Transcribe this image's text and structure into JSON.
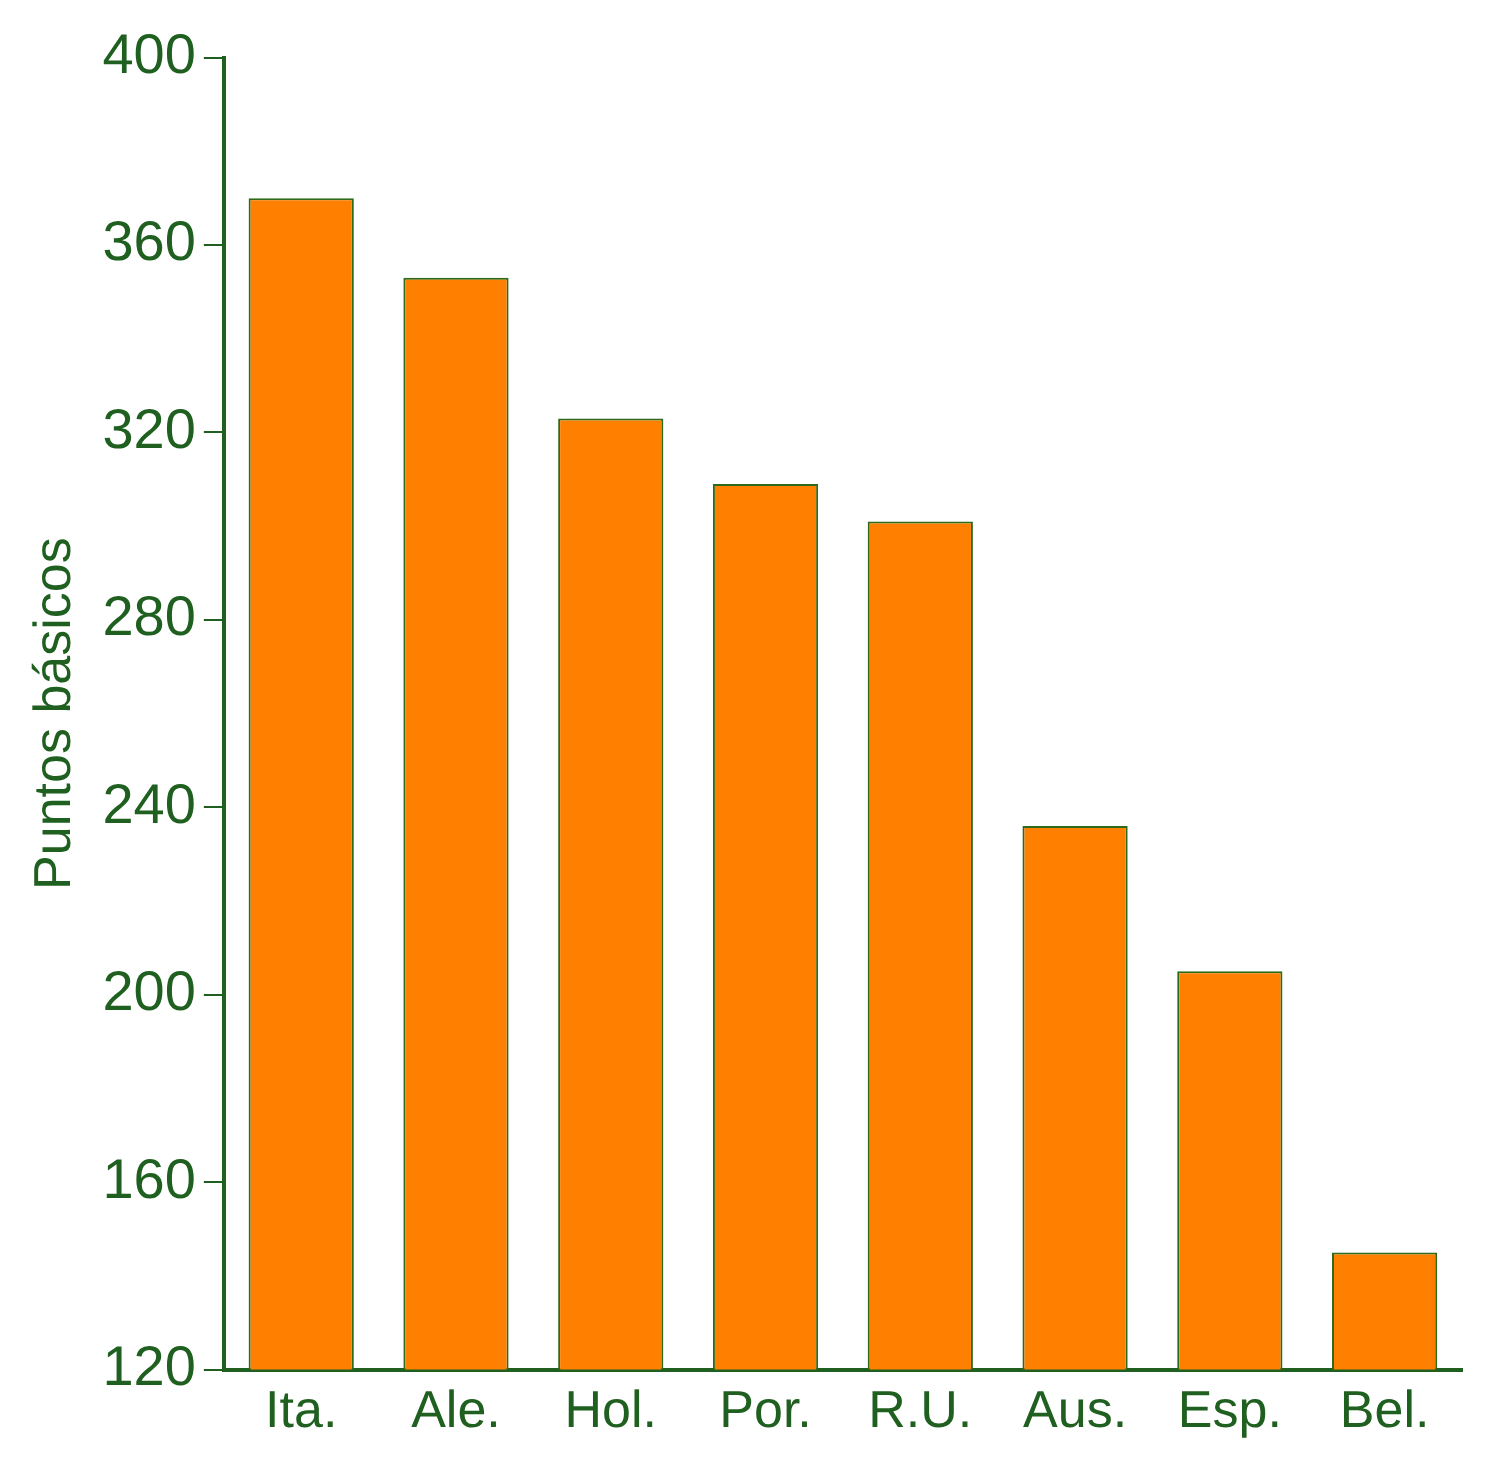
{
  "chart_data": {
    "type": "bar",
    "ylabel": "Puntos básicos",
    "categories": [
      "Ita.",
      "Ale.",
      "Hol.",
      "Por.",
      "R.U.",
      "Aus.",
      "Esp.",
      "Bel."
    ],
    "values": [
      370,
      353,
      323,
      309,
      301,
      236,
      205,
      145
    ],
    "color": "#ff8000",
    "ylim": [
      120,
      400
    ],
    "yticks": [
      120,
      160,
      200,
      240,
      280,
      320,
      360,
      400
    ],
    "grid": false,
    "legend": false
  }
}
